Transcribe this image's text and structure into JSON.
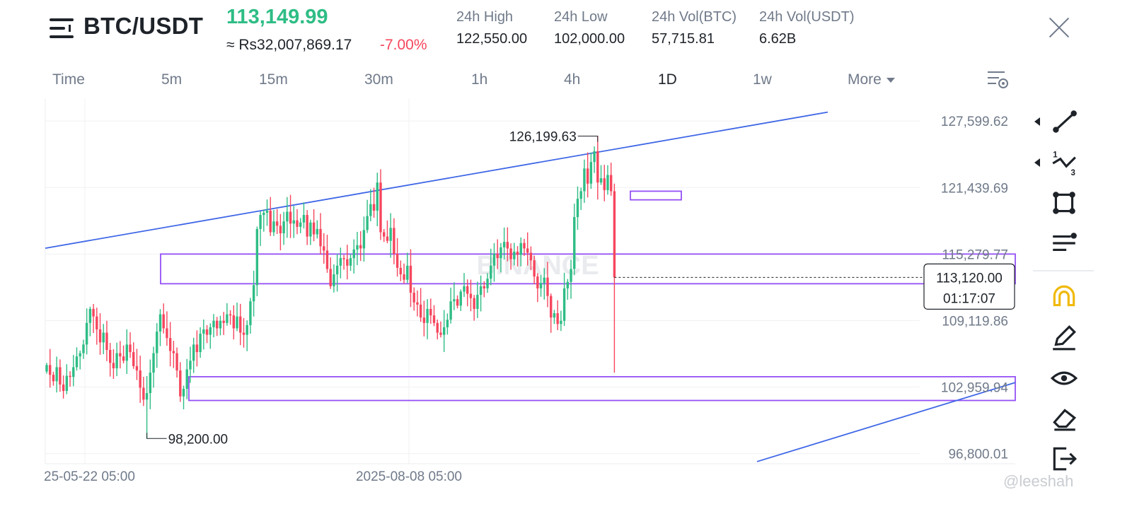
{
  "header": {
    "pair": "BTC/USDT",
    "last_price": "113,149.99",
    "approx_value": "≈ Rs32,007,869.17",
    "change_percent": "-7.00%",
    "stats": [
      {
        "label": "24h High",
        "value": "122,550.00"
      },
      {
        "label": "24h Low",
        "value": "102,000.00"
      },
      {
        "label": "24h Vol(BTC)",
        "value": "57,715.81"
      },
      {
        "label": "24h Vol(USDT)",
        "value": "6.62B"
      }
    ],
    "icons": {
      "menu": "menu-icon",
      "close": "close-icon"
    }
  },
  "timeframes": {
    "items": [
      "Time",
      "5m",
      "15m",
      "30m",
      "1h",
      "4h",
      "1D",
      "1w"
    ],
    "active": "1D",
    "more_label": "More"
  },
  "chart_data": {
    "type": "candlestick",
    "interval": "1D",
    "y_axis": {
      "ticks": [
        "127,599.62",
        "121,439.69",
        "115,279.77",
        "109,119.86",
        "102,959.94",
        "96,800.01"
      ],
      "range": [
        95860,
        129640
      ]
    },
    "x_axis": {
      "ticks": [
        "2025-05-22 05:00",
        "2025-08-08 05:00"
      ],
      "tick_labels_shown": [
        "25-05-22 05:00",
        "2025-08-08 05:00"
      ]
    },
    "watermark": "BINANCE",
    "current_price_label": "113,120.00",
    "countdown_label": "01:17:07",
    "current_price_value": 113120,
    "max_label": "126,199.63",
    "max_value": 126199.63,
    "min_label": "98,200.00",
    "min_value": 98200,
    "colors": {
      "up": "#2ebd85",
      "down": "#f6465d",
      "trendline": "#3f67e6",
      "zone": "#9450f5",
      "grid": "#f0f1f3"
    },
    "candles_close": [
      105000,
      104100,
      103500,
      104800,
      103200,
      102600,
      104000,
      103900,
      104800,
      105800,
      106100,
      106900,
      108900,
      110200,
      109500,
      108300,
      107100,
      108000,
      106400,
      105200,
      104700,
      106100,
      105800,
      105400,
      106900,
      106200,
      104900,
      104500,
      102900,
      101800,
      102400,
      104300,
      106100,
      108100,
      109700,
      108400,
      107500,
      106300,
      106100,
      104500,
      102100,
      102800,
      104600,
      105400,
      106900,
      106200,
      107900,
      108300,
      107800,
      108500,
      109100,
      108400,
      109100,
      108900,
      109700,
      109600,
      108400,
      109500,
      108000,
      107800,
      108700,
      110900,
      112400,
      117600,
      118900,
      119100,
      119300,
      117300,
      118300,
      117900,
      117200,
      118300,
      119200,
      118100,
      118400,
      117800,
      118200,
      118900,
      116900,
      118200,
      117100,
      117600,
      116000,
      115600,
      113900,
      112300,
      113400,
      114200,
      114900,
      114800,
      114200,
      114900,
      115700,
      116100,
      115800,
      117500,
      118800,
      119900,
      119300,
      121900,
      117300,
      116900,
      116500,
      117700,
      115300,
      114000,
      113400,
      112900,
      114200,
      111700,
      110800,
      110600,
      109400,
      108900,
      110200,
      109600,
      108900,
      108000,
      107800,
      108500,
      109200,
      110900,
      111100,
      110500,
      111800,
      112300,
      111600,
      111200,
      110200,
      111500,
      112300,
      112100,
      113000,
      114200,
      115300,
      114900,
      115900,
      116400,
      115800,
      114800,
      115500,
      115200,
      116300,
      115800,
      115400,
      114700,
      113200,
      112100,
      112600,
      113100,
      111400,
      109400,
      109800,
      108800,
      109100,
      112100,
      112700,
      113900,
      118700,
      120400,
      121100,
      123200,
      121800,
      123800,
      124800,
      121900,
      122300,
      121200,
      122600,
      121100,
      113120
    ]
  },
  "drawing_tools": {
    "items": [
      "trendline-tool-icon",
      "fibonacci-tool-icon",
      "rectangle-tool-icon",
      "settings-lines-icon",
      "magnet-icon",
      "pencil-icon",
      "eye-icon",
      "eraser-icon",
      "exit-icon"
    ],
    "settings_icon": "chart-settings-icon"
  },
  "watermark_text": "@leeshah"
}
